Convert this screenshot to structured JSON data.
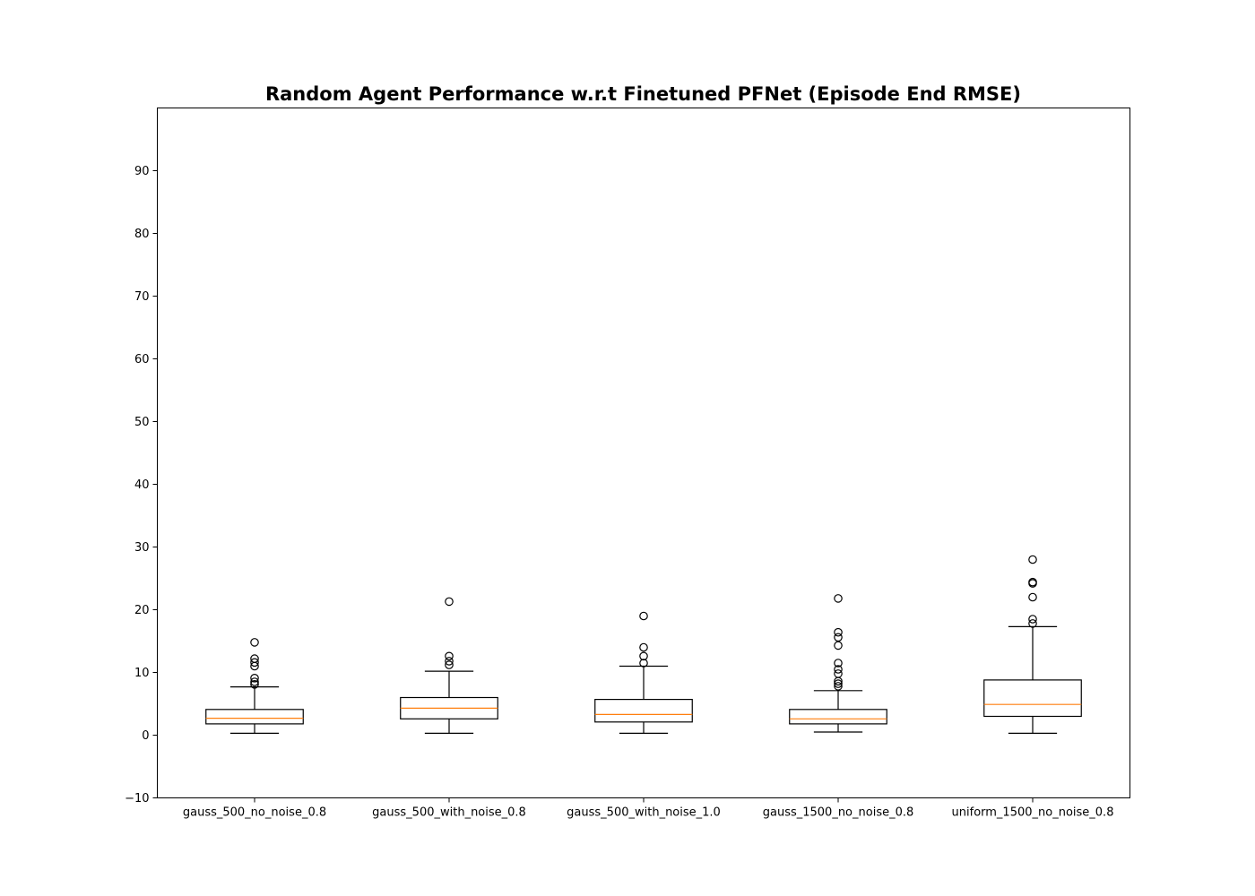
{
  "chart_data": {
    "type": "box",
    "title": "Random Agent Performance w.r.t Finetuned PFNet (Episode End RMSE)",
    "xlabel": "",
    "ylabel": "",
    "ylim": [
      -10,
      100
    ],
    "yticks": [
      -10,
      0,
      10,
      20,
      30,
      40,
      50,
      60,
      70,
      80,
      90
    ],
    "grid": false,
    "colors": {
      "box": "#000000",
      "median": "#ff7f0e",
      "flier": "#000000"
    },
    "categories": [
      "gauss_500_no_noise_0.8",
      "gauss_500_with_noise_0.8",
      "gauss_500_with_noise_1.0",
      "gauss_1500_no_noise_0.8",
      "uniform_1500_no_noise_0.8"
    ],
    "boxes": [
      {
        "whisker_low": 0.3,
        "q1": 1.8,
        "median": 2.7,
        "q3": 4.1,
        "whisker_high": 7.7,
        "fliers": [
          14.8,
          12.2,
          11.6,
          11.0,
          9.1,
          8.5,
          8.1
        ]
      },
      {
        "whisker_low": 0.3,
        "q1": 2.6,
        "median": 4.3,
        "q3": 6.0,
        "whisker_high": 10.2,
        "fliers": [
          21.3,
          12.6,
          11.8,
          11.2
        ]
      },
      {
        "whisker_low": 0.3,
        "q1": 2.1,
        "median": 3.3,
        "q3": 5.7,
        "whisker_high": 11.0,
        "fliers": [
          19.0,
          14.0,
          12.6,
          11.5
        ]
      },
      {
        "whisker_low": 0.5,
        "q1": 1.8,
        "median": 2.6,
        "q3": 4.1,
        "whisker_high": 7.1,
        "fliers": [
          21.8,
          16.4,
          15.6,
          14.3,
          11.5,
          10.5,
          9.8,
          8.6,
          8.2,
          7.8
        ]
      },
      {
        "whisker_low": 0.3,
        "q1": 3.0,
        "median": 4.9,
        "q3": 8.8,
        "whisker_high": 17.3,
        "fliers": [
          28.0,
          24.4,
          24.2,
          22.0,
          18.5,
          17.8
        ]
      }
    ]
  }
}
